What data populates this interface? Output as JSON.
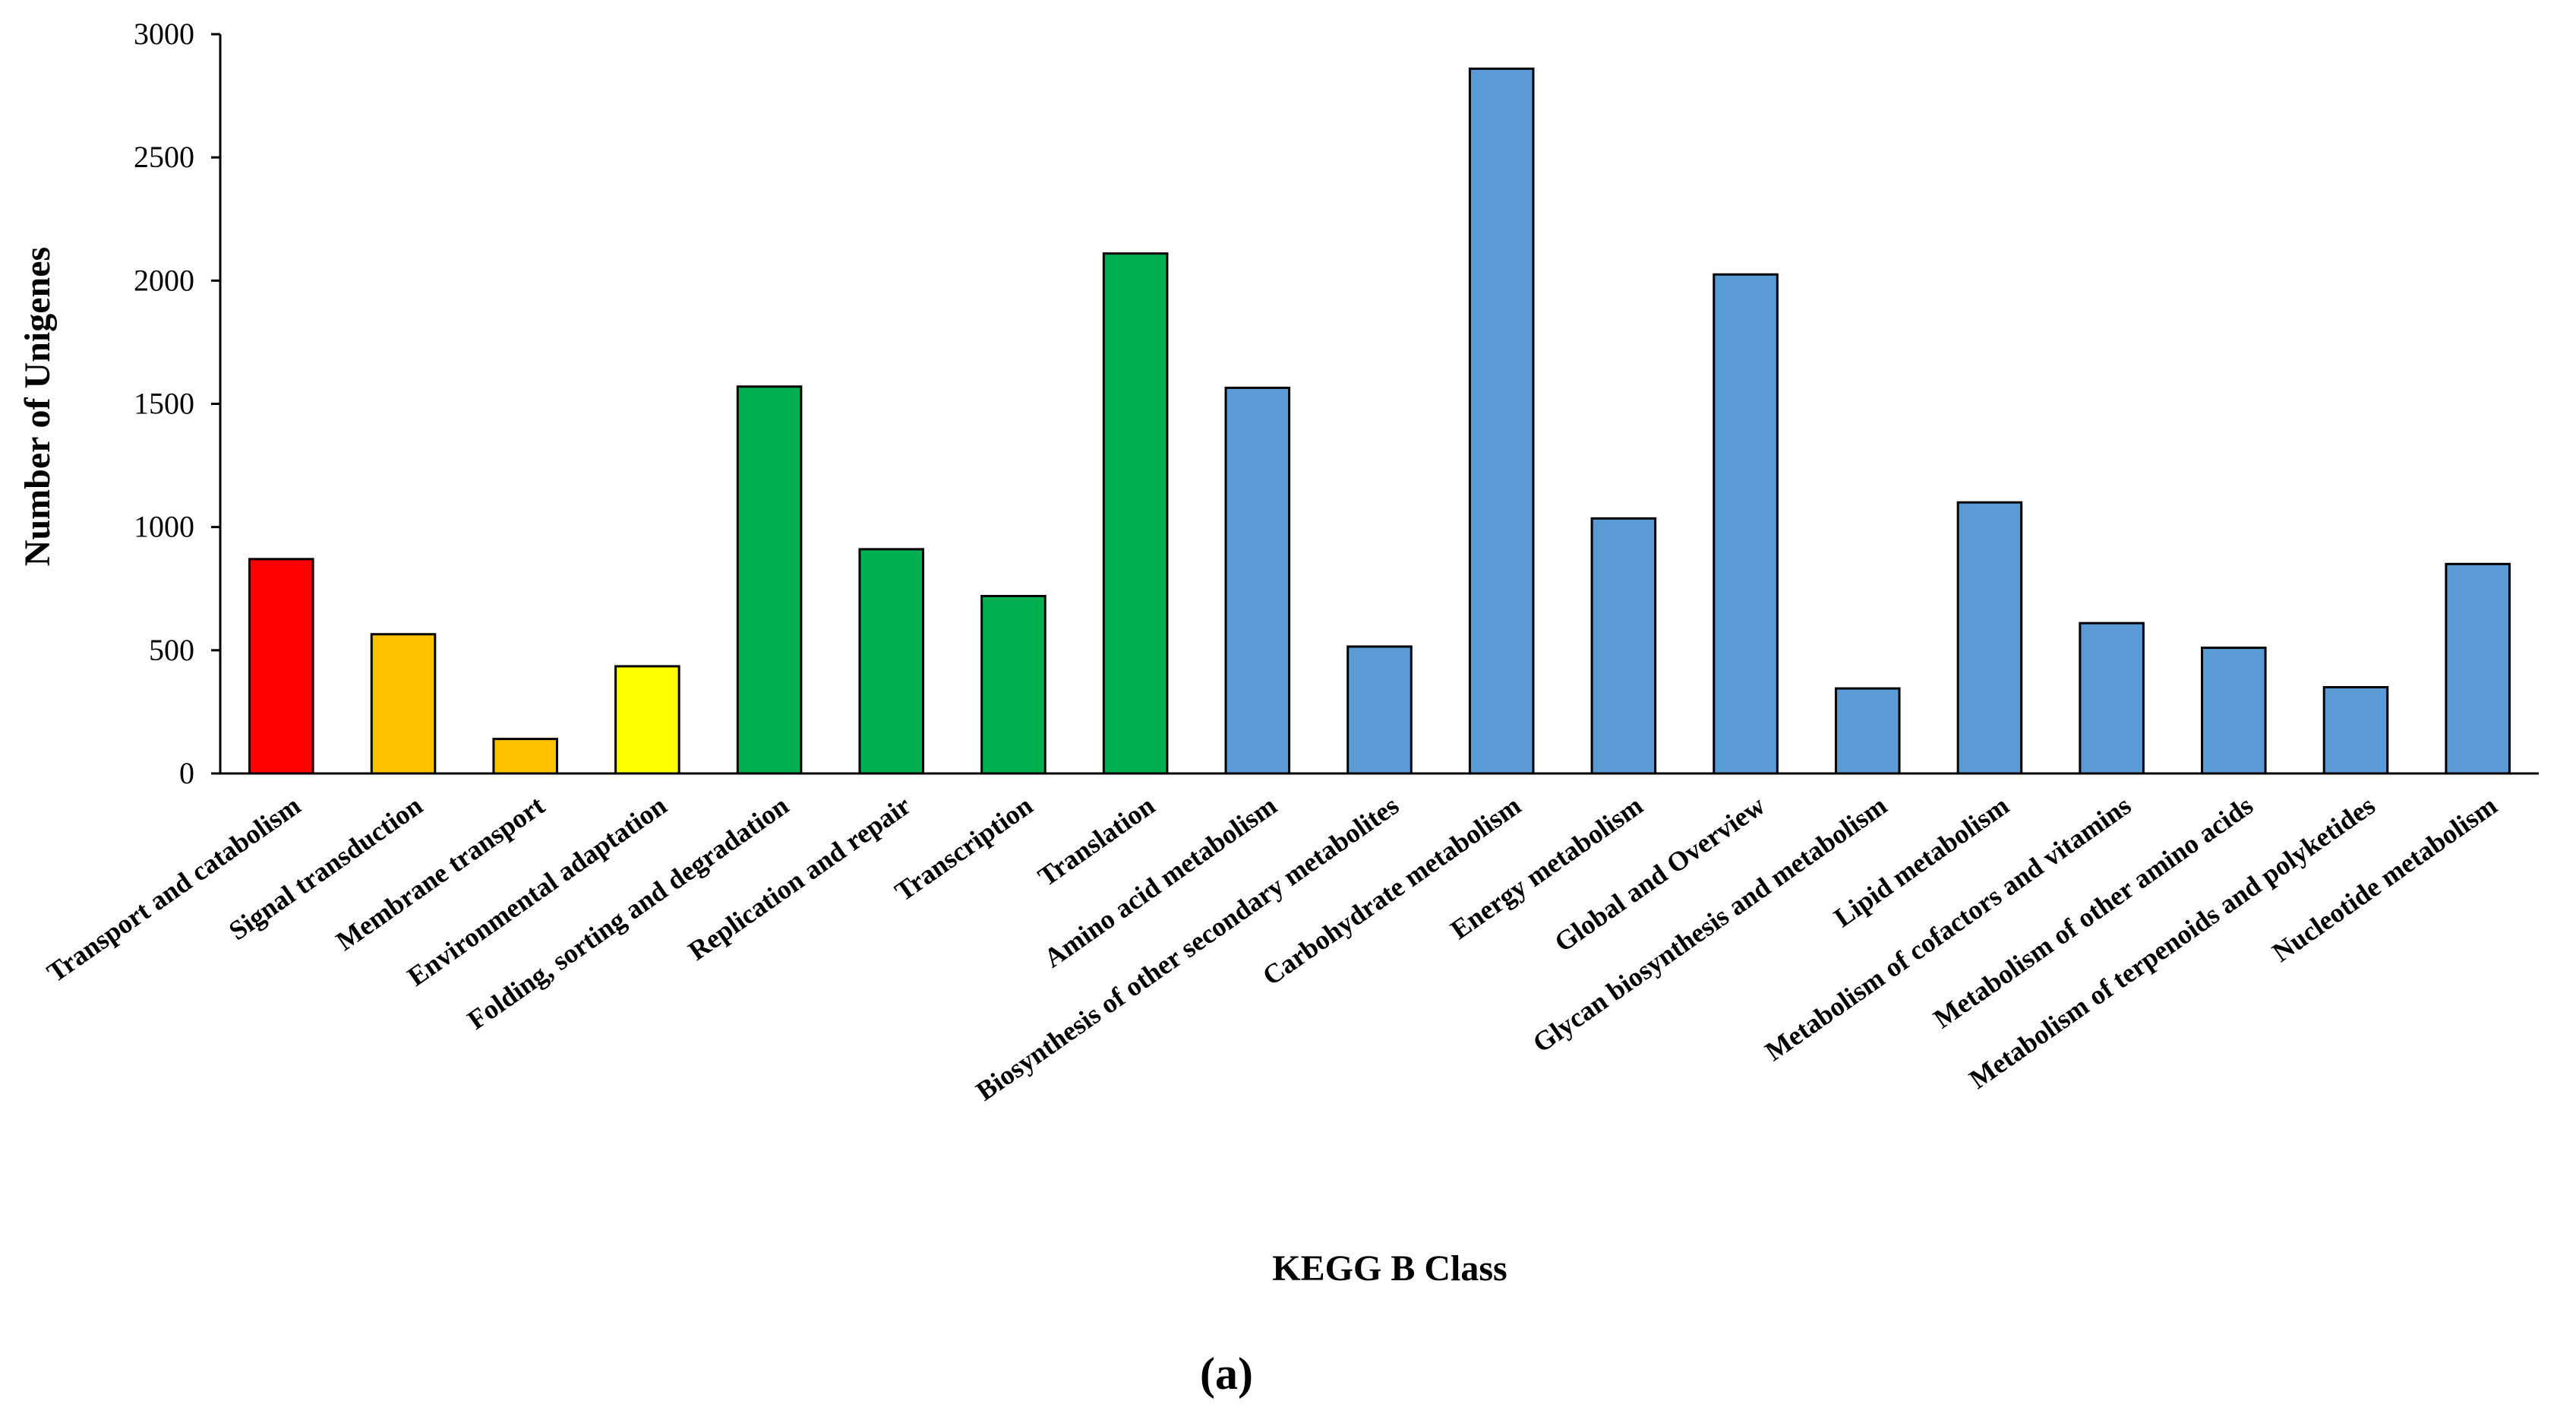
{
  "chart_data": {
    "type": "bar",
    "title": "",
    "xlabel": "KEGG B Class",
    "ylabel": "Number of Unigenes",
    "panel_label": "(a)",
    "ylim": [
      0,
      3000
    ],
    "y_ticks": [
      "0",
      "500",
      "1000",
      "1500",
      "2000",
      "2500",
      "3000"
    ],
    "grid": false,
    "legend": "none",
    "categories": [
      "Transport and catabolism",
      "Signal transduction",
      "Membrane transport",
      "Environmental adaptation",
      "Folding, sorting and degradation",
      "Replication and repair",
      "Transcription",
      "Translation",
      "Amino acid metabolism",
      "Biosynthesis of other secondary metabolites",
      "Carbohydrate metabolism",
      "Energy metabolism",
      "Global and Overview",
      "Glycan biosynthesis and metabolism",
      "Lipid metabolism",
      "Metabolism of cofactors and vitamins",
      "Metabolism of other amino acids",
      "Metabolism of terpenoids and polyketides",
      "Nucleotide metabolism"
    ],
    "values": [
      870,
      565,
      140,
      435,
      1570,
      910,
      720,
      2110,
      1565,
      515,
      2860,
      1035,
      2025,
      345,
      1100,
      610,
      510,
      350,
      850
    ],
    "bar_colors": [
      "#ff0000",
      "#ffc000",
      "#ffc000",
      "#ffff00",
      "#00b050",
      "#00b050",
      "#00b050",
      "#00b050",
      "#5b9bd5",
      "#5b9bd5",
      "#5b9bd5",
      "#5b9bd5",
      "#5b9bd5",
      "#5b9bd5",
      "#5b9bd5",
      "#5b9bd5",
      "#5b9bd5",
      "#5b9bd5",
      "#5b9bd5"
    ],
    "axis_color": "#000000"
  }
}
